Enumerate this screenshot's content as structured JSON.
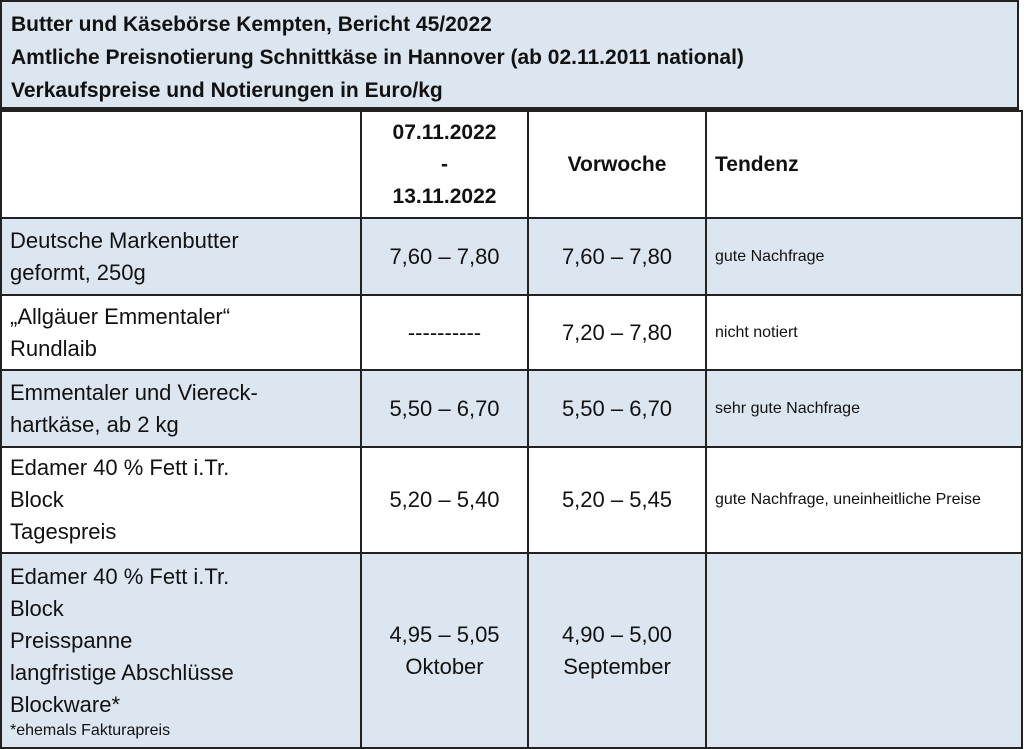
{
  "header": {
    "line1": "Butter und Käsebörse Kempten, Bericht 45/2022",
    "line2": "Amtliche Preisnotierung Schnittkäse in Hannover (ab 02.11.2011 national)",
    "line3": "Verkaufspreise und Notierungen in Euro/kg"
  },
  "columns": {
    "current_from": "07.11.2022",
    "current_sep": "-",
    "current_to": "13.11.2022",
    "previous": "Vorwoche",
    "trend": "Tendenz"
  },
  "rows": [
    {
      "product": [
        "Deutsche Markenbutter",
        "geformt, 250g"
      ],
      "current": "7,60 – 7,80",
      "previous": "7,60 – 7,80",
      "trend": "gute Nachfrage"
    },
    {
      "product": [
        "„Allgäuer Emmentaler“",
        "Rundlaib"
      ],
      "current": "----------",
      "previous": "7,20 – 7,80",
      "trend": "nicht notiert"
    },
    {
      "product": [
        "Emmentaler und Viereck-",
        "hartkäse, ab 2 kg"
      ],
      "current": "5,50 – 6,70",
      "previous": "5,50 – 6,70",
      "trend": "sehr gute Nachfrage"
    },
    {
      "product": [
        "Edamer 40 % Fett i.Tr.",
        "Block",
        "Tagespreis"
      ],
      "current": "5,20 – 5,40",
      "previous": "5,20 – 5,45",
      "trend": "gute Nachfrage, uneinheitliche Preise"
    },
    {
      "product": [
        "Edamer 40 % Fett i.Tr.",
        "Block",
        "Preisspanne",
        "langfristige Abschlüsse",
        "Blockware*"
      ],
      "footnote": "*ehemals Fakturapreis",
      "current": "4,95 – 5,05",
      "current_note": "Oktober",
      "previous": "4,90 – 5,00",
      "previous_note": "September",
      "trend": ""
    }
  ],
  "colors": {
    "row_highlight": "#dce6f1",
    "border": "#222222"
  }
}
